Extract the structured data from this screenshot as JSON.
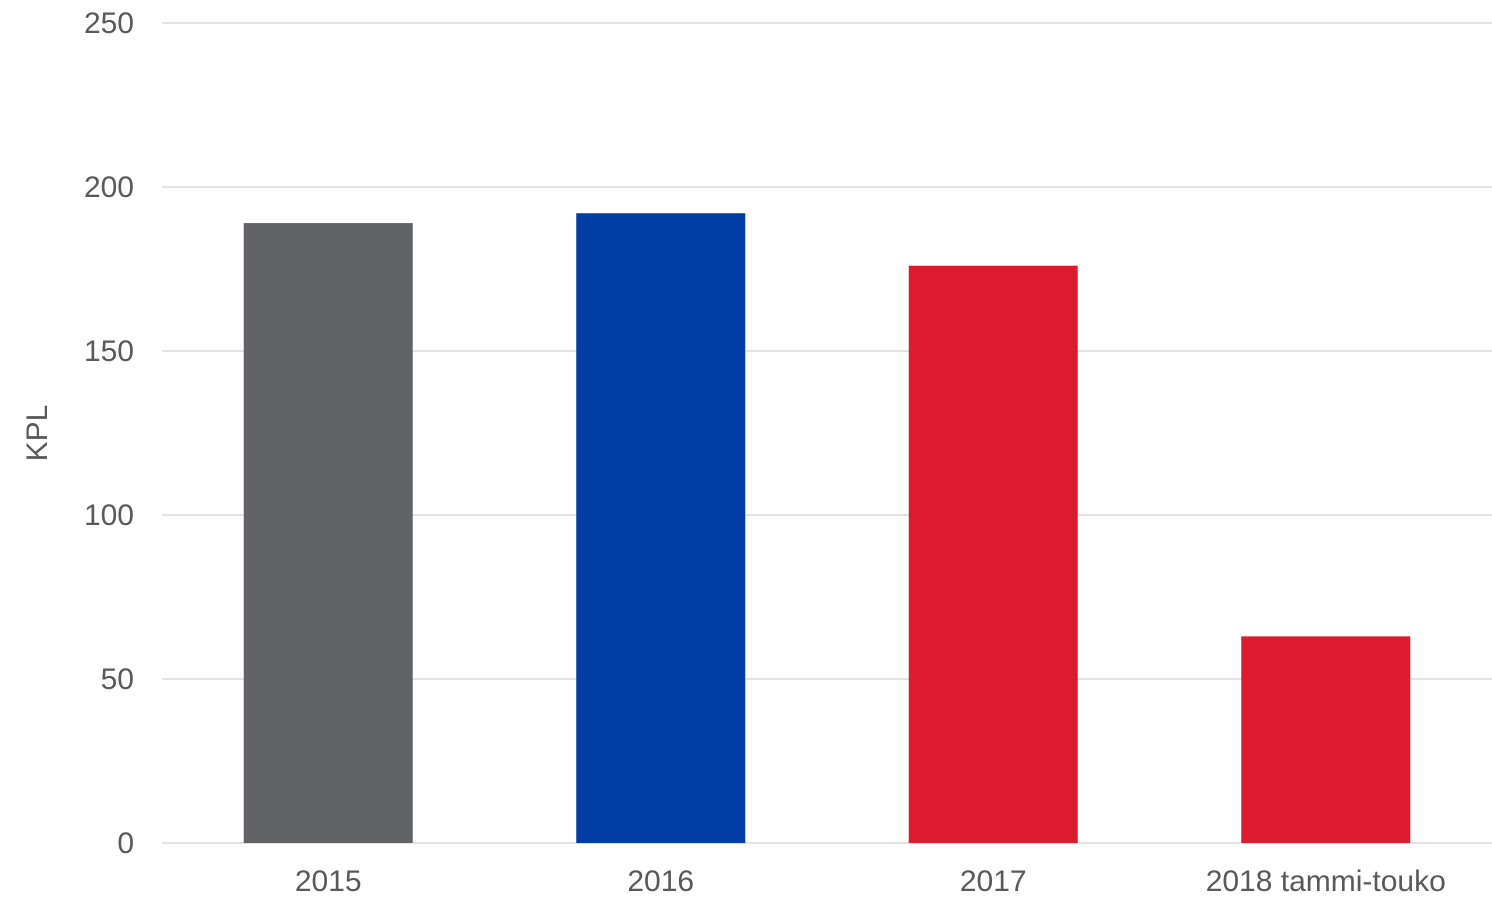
{
  "chart_data": {
    "type": "bar",
    "categories": [
      "2015",
      "2016",
      "2017",
      "2018 tammi-touko"
    ],
    "values": [
      189,
      192,
      176,
      63
    ],
    "colors": [
      "#616266",
      "#003da5",
      "#dc1c2e",
      "#dc1c2e"
    ],
    "title": "",
    "xlabel": "",
    "ylabel": "KPL",
    "ylim": [
      0,
      250
    ],
    "yticks": [
      0,
      50,
      100,
      150,
      200,
      250
    ],
    "grid": true,
    "legend": "none"
  }
}
